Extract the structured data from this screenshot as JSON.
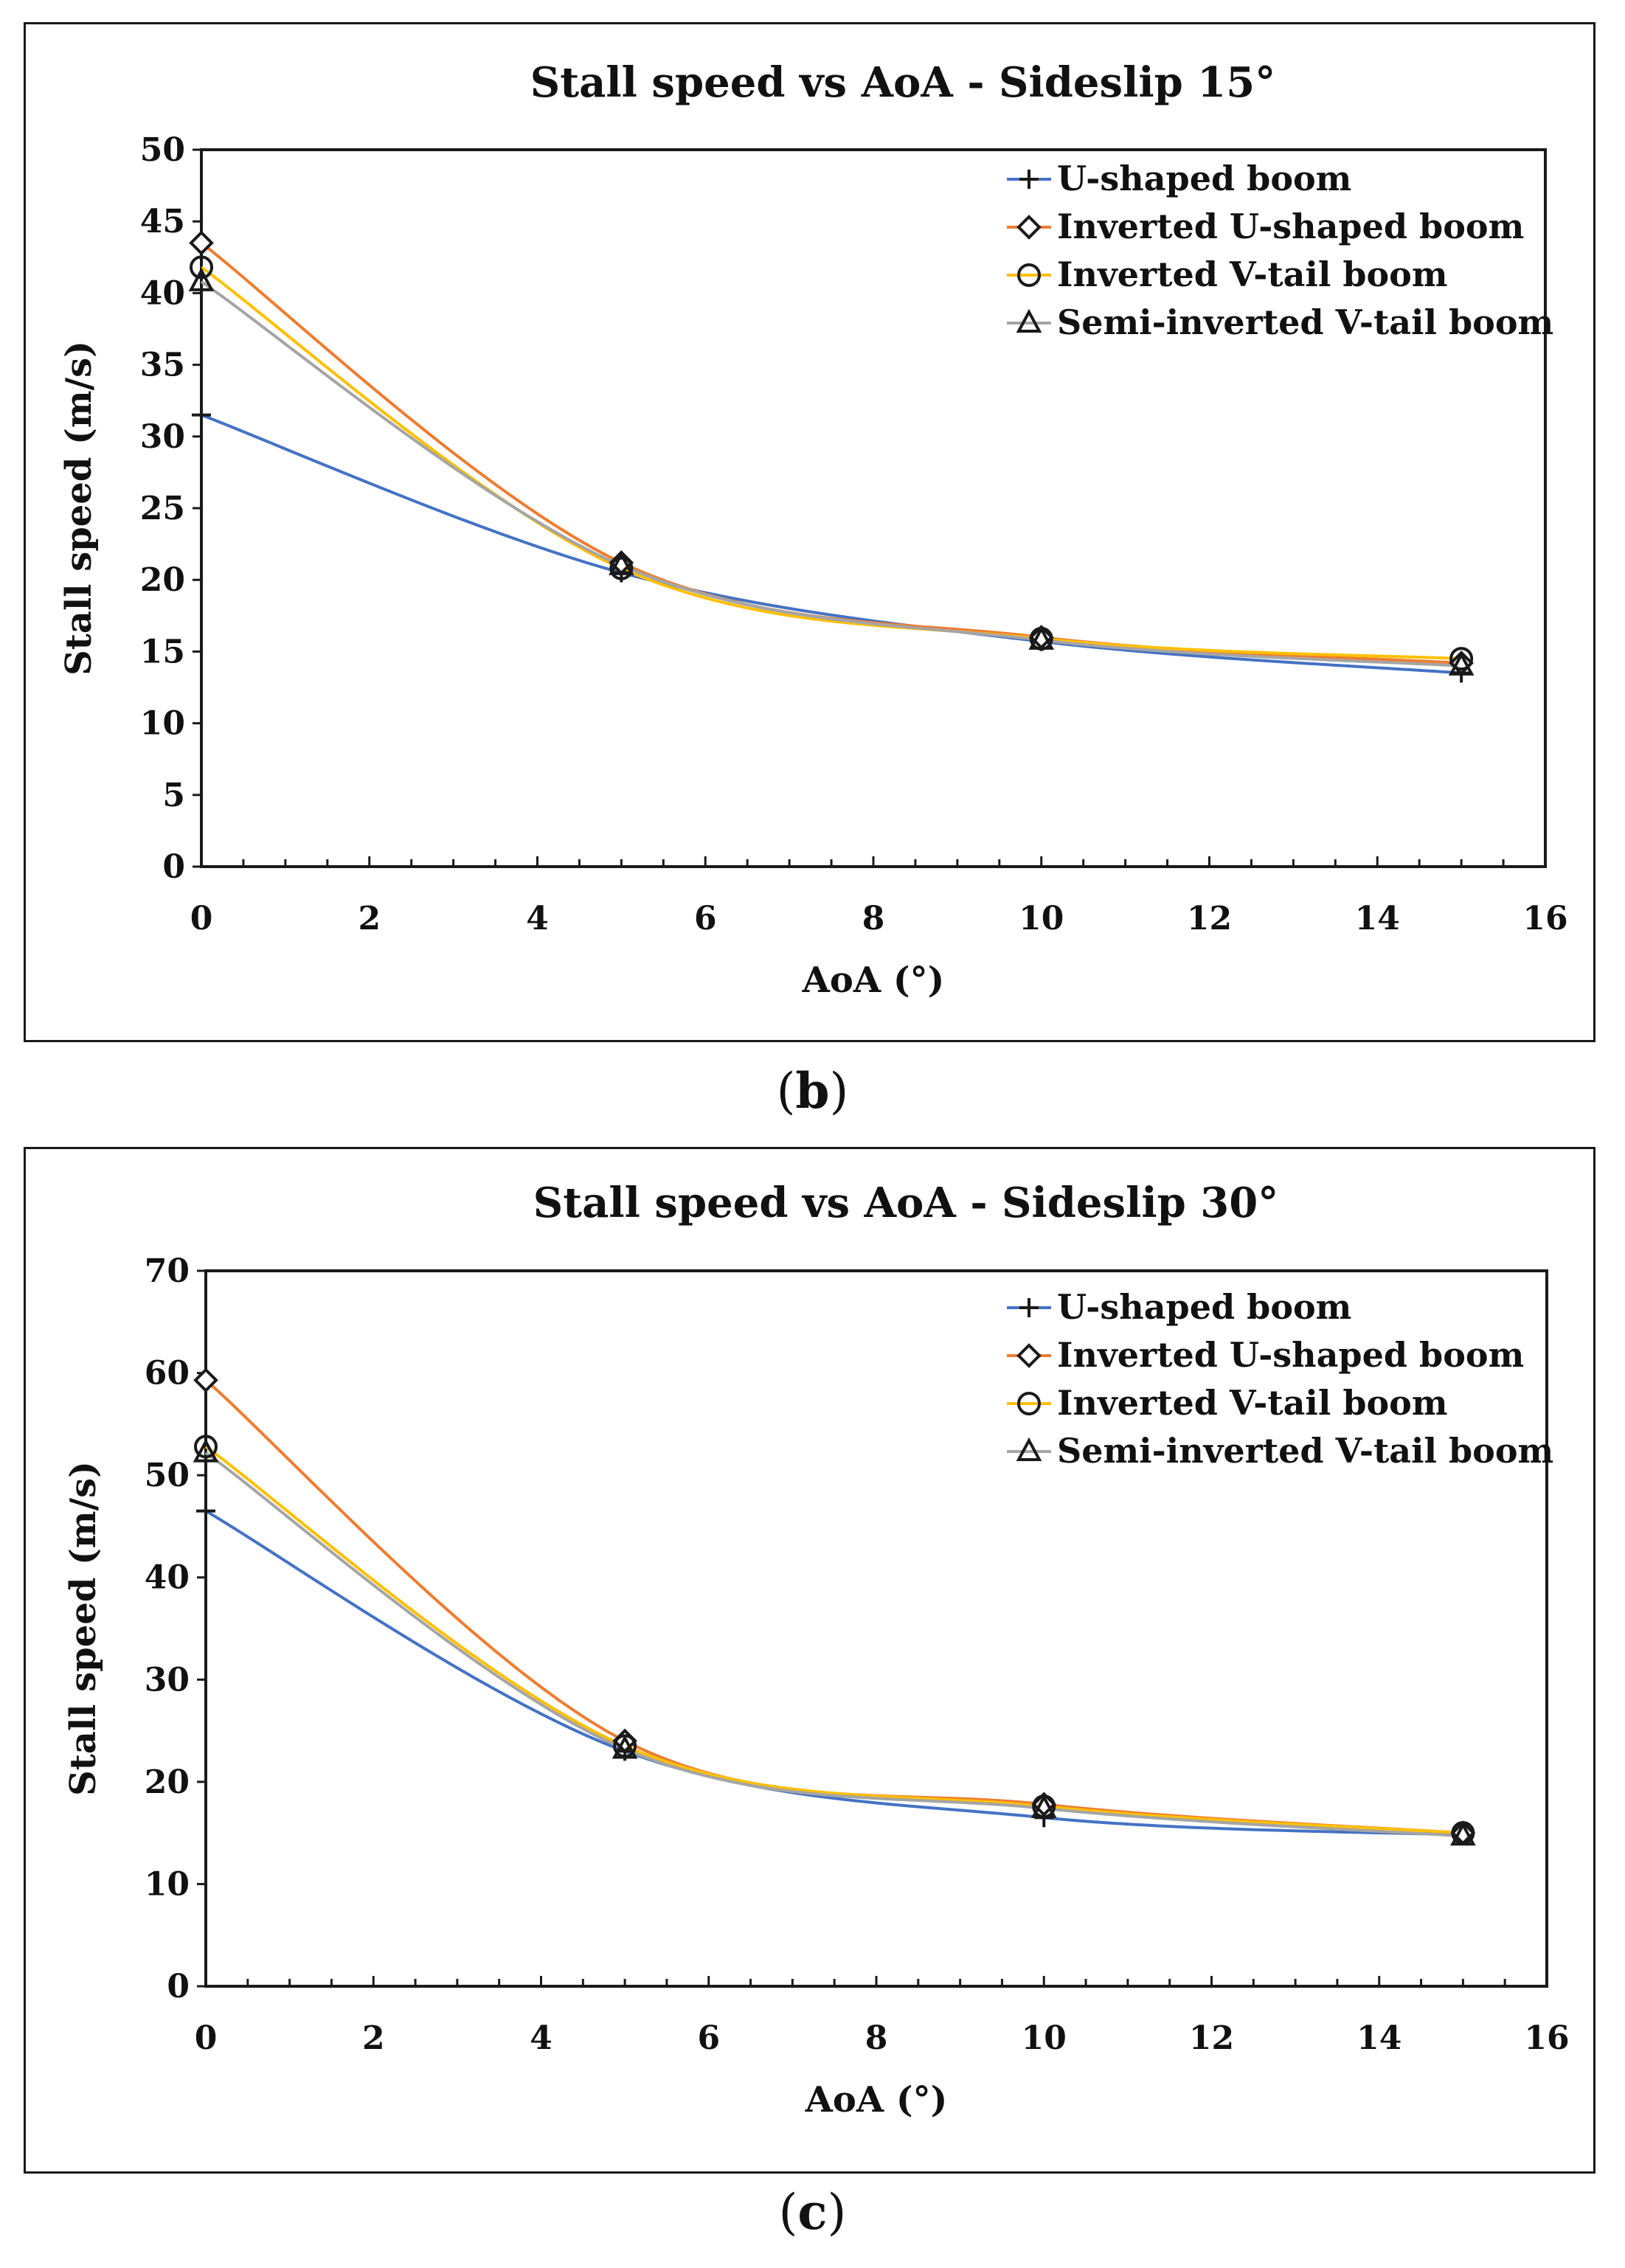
{
  "captions": {
    "b": "b",
    "c": "c"
  },
  "chart_data": [
    {
      "type": "line",
      "title": "Stall speed vs AoA - Sideslip 15°",
      "xlabel": "AoA (°)",
      "ylabel": "Stall speed (m/s)",
      "xlim": [
        0,
        16
      ],
      "ylim": [
        0,
        50
      ],
      "xticks": [
        0,
        2,
        4,
        6,
        8,
        10,
        12,
        14,
        16
      ],
      "yticks": [
        0,
        5,
        10,
        15,
        20,
        25,
        30,
        35,
        40,
        45,
        50
      ],
      "grid": false,
      "legend_position": "top-right",
      "x": [
        0,
        5,
        10,
        15
      ],
      "series": [
        {
          "name": "U-shaped boom",
          "marker": "plus",
          "color": "#4472C4",
          "values": [
            31.5,
            20.5,
            15.7,
            13.5
          ]
        },
        {
          "name": "Inverted U-shaped boom",
          "marker": "diamond",
          "color": "#ED7D31",
          "values": [
            43.5,
            21.2,
            16.0,
            14.2
          ]
        },
        {
          "name": "Inverted V-tail boom",
          "marker": "circle",
          "color": "#FFC000",
          "values": [
            41.8,
            20.8,
            15.9,
            14.5
          ]
        },
        {
          "name": "Semi-inverted V-tail boom",
          "marker": "triangle",
          "color": "#A5A5A5",
          "values": [
            40.8,
            21.0,
            15.8,
            14.0
          ]
        }
      ]
    },
    {
      "type": "line",
      "title": "Stall speed vs AoA - Sideslip 30°",
      "xlabel": "AoA (°)",
      "ylabel": "Stall speed (m/s)",
      "xlim": [
        0,
        16
      ],
      "ylim": [
        0,
        70
      ],
      "xticks": [
        0,
        2,
        4,
        6,
        8,
        10,
        12,
        14,
        16
      ],
      "yticks": [
        0,
        10,
        20,
        30,
        40,
        50,
        60,
        70
      ],
      "grid": false,
      "legend_position": "top-right",
      "x": [
        0,
        5,
        10,
        15
      ],
      "series": [
        {
          "name": "U-shaped boom",
          "marker": "plus",
          "color": "#4472C4",
          "values": [
            46.5,
            23.0,
            16.5,
            14.8
          ]
        },
        {
          "name": "Inverted U-shaped boom",
          "marker": "diamond",
          "color": "#ED7D31",
          "values": [
            59.3,
            24.0,
            17.8,
            15.0
          ]
        },
        {
          "name": "Inverted V-tail boom",
          "marker": "circle",
          "color": "#FFC000",
          "values": [
            52.8,
            23.5,
            17.6,
            15.0
          ]
        },
        {
          "name": "Semi-inverted V-tail boom",
          "marker": "triangle",
          "color": "#A5A5A5",
          "values": [
            52.2,
            23.2,
            17.4,
            14.7
          ]
        }
      ]
    }
  ]
}
